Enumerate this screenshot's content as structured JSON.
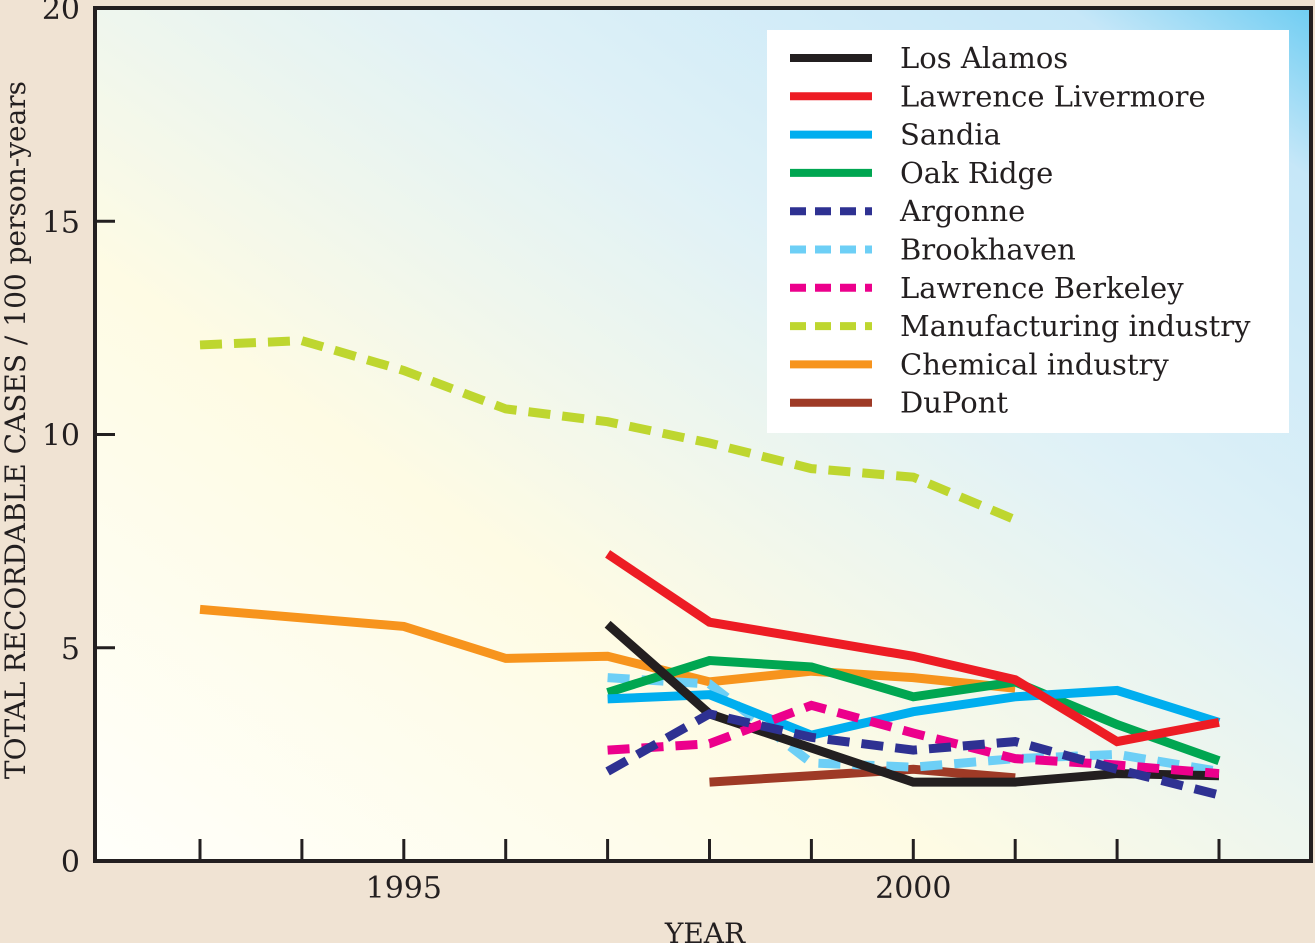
{
  "chart_data": {
    "type": "line",
    "title": "",
    "xlabel": "YEAR",
    "ylabel": "TOTAL RECORDABLE CASES / 100 person-years",
    "xlim": [
      1992.0,
      2003.9
    ],
    "ylim": [
      0,
      20
    ],
    "x_ticks": [
      1993,
      1994,
      1995,
      1996,
      1997,
      1998,
      1999,
      2000,
      2001,
      2002,
      2003
    ],
    "x_tick_labels": [
      {
        "value": 1995,
        "label": "1995"
      },
      {
        "value": 2000,
        "label": "2000"
      }
    ],
    "y_ticks": [
      0,
      5,
      10,
      15,
      20
    ],
    "y_tick_labels": [
      "0",
      "5",
      "10",
      "15",
      "20"
    ],
    "grid": false,
    "legend_position": "top-right",
    "series": [
      {
        "name": "Los Alamos",
        "color": "#231f20",
        "dashed": false,
        "x": [
          1997,
          1998,
          1999,
          2000,
          2001,
          2002,
          2003
        ],
        "values": [
          5.55,
          3.45,
          2.65,
          1.85,
          1.85,
          2.05,
          2.0
        ]
      },
      {
        "name": "Lawrence Livermore",
        "color": "#ed1c24",
        "dashed": false,
        "x": [
          1997,
          1998,
          1999,
          2000,
          2001,
          2002,
          2003
        ],
        "values": [
          7.2,
          5.6,
          5.2,
          4.8,
          4.25,
          2.8,
          3.25
        ]
      },
      {
        "name": "Sandia",
        "color": "#00aeef",
        "dashed": false,
        "x": [
          1997,
          1998,
          1999,
          2000,
          2001,
          2002,
          2003
        ],
        "values": [
          3.8,
          3.9,
          2.95,
          3.5,
          3.85,
          4.0,
          3.25
        ]
      },
      {
        "name": "Oak Ridge",
        "color": "#00a651",
        "dashed": false,
        "x": [
          1997,
          1998,
          1999,
          2000,
          2001,
          2002,
          2003
        ],
        "values": [
          3.95,
          4.7,
          4.55,
          3.85,
          4.2,
          3.2,
          2.35
        ]
      },
      {
        "name": "Argonne",
        "color": "#2e3192",
        "dashed": true,
        "x": [
          1997,
          1998,
          1999,
          2000,
          2001,
          2002,
          2003
        ],
        "values": [
          2.1,
          3.45,
          2.9,
          2.6,
          2.8,
          2.15,
          1.55
        ]
      },
      {
        "name": "Brookhaven",
        "color": "#6dcff6",
        "dashed": true,
        "x": [
          1997,
          1998,
          1999,
          2000,
          2001,
          2002,
          2003
        ],
        "values": [
          4.3,
          4.15,
          2.3,
          2.2,
          2.4,
          2.5,
          2.1
        ]
      },
      {
        "name": "Lawrence Berkeley",
        "color": "#ec008c",
        "dashed": true,
        "x": [
          1997,
          1998,
          1999,
          2000,
          2001,
          2002,
          2003
        ],
        "values": [
          2.6,
          2.75,
          3.65,
          3.0,
          2.4,
          2.25,
          2.05
        ]
      },
      {
        "name": "Manufacturing industry",
        "color": "#bed62f",
        "dashed": true,
        "x": [
          1993,
          1994,
          1995,
          1996,
          1997,
          1998,
          1999,
          2000,
          2001
        ],
        "values": [
          12.1,
          12.2,
          11.5,
          10.6,
          10.3,
          9.8,
          9.2,
          9.0,
          8.0
        ]
      },
      {
        "name": "Chemical industry",
        "color": "#f7941d",
        "dashed": false,
        "x": [
          1993,
          1994,
          1995,
          1996,
          1997,
          1998,
          1999,
          2000,
          2001
        ],
        "values": [
          5.9,
          5.7,
          5.5,
          4.75,
          4.8,
          4.2,
          4.45,
          4.3,
          4.05
        ]
      },
      {
        "name": "DuPont",
        "color": "#9e3a26",
        "dashed": false,
        "x": [
          1998,
          1999,
          2000,
          2001
        ],
        "values": [
          1.85,
          2.0,
          2.15,
          1.95
        ]
      }
    ]
  }
}
